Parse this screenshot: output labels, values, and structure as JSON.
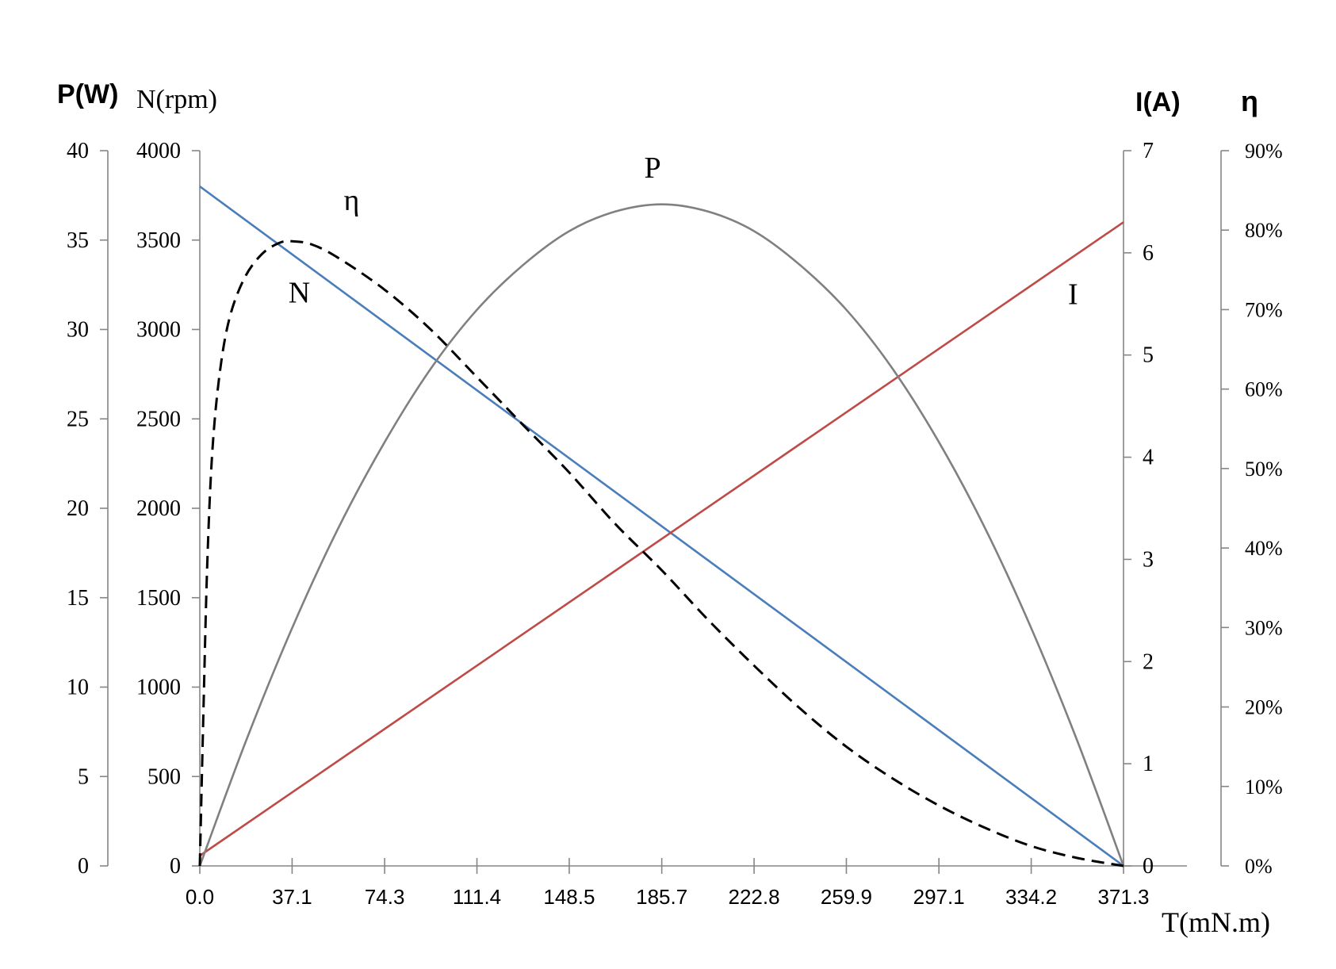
{
  "chart_data": {
    "type": "line",
    "axis_titles": {
      "power": "P(W)",
      "speed": "N(rpm)",
      "current": "I(A)",
      "efficiency": "η",
      "torque": "T(mN.m)"
    },
    "x": {
      "range": [
        0,
        371.3
      ],
      "ticks": [
        0,
        37.1,
        74.3,
        111.4,
        148.5,
        185.7,
        222.8,
        259.9,
        297.1,
        334.2,
        371.3
      ],
      "tick_labels": [
        "0.0",
        "37.1",
        "74.3",
        "111.4",
        "148.5",
        "185.7",
        "222.8",
        "259.9",
        "297.1",
        "334.2",
        "371.3"
      ]
    },
    "y_power": {
      "range": [
        0,
        40
      ],
      "tick_labels": [
        "0",
        "5",
        "10",
        "15",
        "20",
        "25",
        "30",
        "35",
        "40"
      ]
    },
    "y_speed": {
      "range": [
        0,
        4000
      ],
      "tick_labels": [
        "0",
        "500",
        "1000",
        "1500",
        "2000",
        "2500",
        "3000",
        "3500",
        "4000"
      ]
    },
    "y_current": {
      "range": [
        0,
        7
      ],
      "tick_labels": [
        "0",
        "1",
        "2",
        "3",
        "4",
        "5",
        "6",
        "7"
      ]
    },
    "y_efficiency": {
      "range": [
        0,
        90
      ],
      "tick_labels": [
        "0%",
        "10%",
        "20%",
        "30%",
        "40%",
        "50%",
        "60%",
        "70%",
        "80%",
        "90%"
      ]
    },
    "series": [
      {
        "name": "N",
        "axis": "speed",
        "color": "#4a7ebb",
        "style": "solid",
        "points": [
          [
            0,
            3800
          ],
          [
            371.3,
            0
          ]
        ]
      },
      {
        "name": "I",
        "axis": "current",
        "color": "#be4b48",
        "style": "solid",
        "points": [
          [
            0,
            0.1
          ],
          [
            371.3,
            6.3
          ]
        ]
      },
      {
        "name": "P",
        "axis": "power",
        "color": "#808080",
        "style": "solid",
        "points": [
          [
            0,
            0
          ],
          [
            18.6,
            7.0
          ],
          [
            37.1,
            13.3
          ],
          [
            55.7,
            18.9
          ],
          [
            74.3,
            23.7
          ],
          [
            92.8,
            27.8
          ],
          [
            111.4,
            31.1
          ],
          [
            129.9,
            33.6
          ],
          [
            148.5,
            35.5
          ],
          [
            167.1,
            36.6
          ],
          [
            185.7,
            37.0
          ],
          [
            204.2,
            36.6
          ],
          [
            222.8,
            35.5
          ],
          [
            241.3,
            33.6
          ],
          [
            259.9,
            31.1
          ],
          [
            278.5,
            27.8
          ],
          [
            297.1,
            23.7
          ],
          [
            315.6,
            18.9
          ],
          [
            334.2,
            13.3
          ],
          [
            352.7,
            7.0
          ],
          [
            371.3,
            0
          ]
        ]
      },
      {
        "name": "η",
        "axis": "efficiency",
        "color": "#000000",
        "style": "dashed",
        "points": [
          [
            0,
            0
          ],
          [
            1.5,
            20
          ],
          [
            3,
            38
          ],
          [
            5,
            52
          ],
          [
            8,
            62
          ],
          [
            12,
            69
          ],
          [
            18,
            74
          ],
          [
            25,
            77
          ],
          [
            32,
            78.4
          ],
          [
            37.1,
            78.6
          ],
          [
            45,
            78.2
          ],
          [
            55.7,
            76.5
          ],
          [
            74.3,
            72.5
          ],
          [
            92.8,
            67.5
          ],
          [
            111.4,
            61.5
          ],
          [
            129.9,
            55.5
          ],
          [
            148.5,
            49.5
          ],
          [
            167.1,
            43.0
          ],
          [
            185.7,
            37.2
          ],
          [
            204.2,
            31.0
          ],
          [
            222.8,
            25.2
          ],
          [
            241.3,
            19.8
          ],
          [
            259.9,
            15.0
          ],
          [
            278.5,
            11.0
          ],
          [
            297.1,
            7.6
          ],
          [
            315.6,
            4.8
          ],
          [
            334.2,
            2.5
          ],
          [
            352.7,
            1.0
          ],
          [
            371.3,
            0
          ]
        ]
      }
    ],
    "curve_labels": [
      {
        "text": "N",
        "at": [
          40,
          3150
        ]
      },
      {
        "text": "η",
        "at": [
          61,
          82.5
        ]
      },
      {
        "text": "P",
        "at": [
          182,
          38.5
        ]
      },
      {
        "text": "I",
        "at": [
          351,
          5.5
        ]
      }
    ],
    "grid": false,
    "legend": "none"
  }
}
